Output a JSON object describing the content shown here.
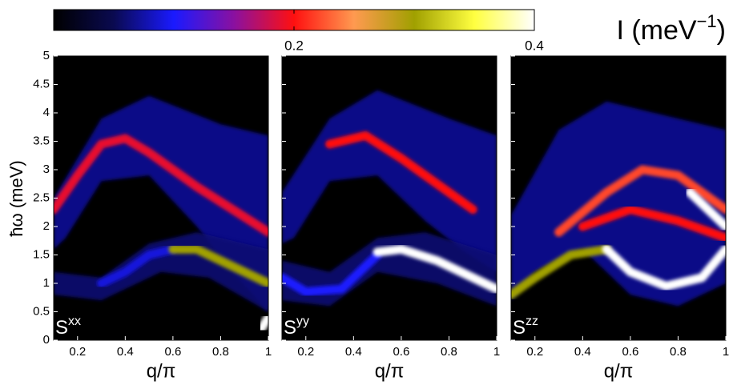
{
  "chart_data": {
    "type": "contour",
    "colorbar_label": {
      "text": "I (meV",
      "sup": "−1",
      "end": ")"
    },
    "colorbar_lim": [
      0,
      0.4
    ],
    "colorbar_ticks": [
      0.2,
      0.4
    ],
    "colormap": [
      "#000000",
      "#0a0a50",
      "#1a1aff",
      "#8a10a0",
      "#ff1010",
      "#ff9a50",
      "#a0a000",
      "#ffff40",
      "#ffffff"
    ],
    "xlabel": "q/π",
    "ylabel": "ħω (meV)",
    "xlim": [
      0.1,
      1
    ],
    "xticks": [
      0.2,
      0.4,
      0.6,
      0.8,
      1
    ],
    "ylim": [
      0,
      5
    ],
    "yticks": [
      0,
      0.5,
      1,
      1.5,
      2,
      2.5,
      3,
      3.5,
      4,
      4.5,
      5
    ],
    "panels": [
      {
        "label": {
          "base": "S",
          "sup": "xx"
        },
        "regions": [
          {
            "x": [
              0.1,
              0.3,
              0.5,
              0.8,
              1,
              1,
              0.85,
              0.7,
              0.5,
              0.3,
              0.15,
              0.1
            ],
            "y": [
              2.5,
              3.9,
              4.3,
              3.8,
              3.6,
              0.5,
              1.2,
              2.0,
              2.9,
              2.8,
              1.8,
              1.6
            ],
            "value": 0.07
          },
          {
            "x": [
              0.1,
              0.3,
              0.5,
              0.7,
              1,
              1,
              0.75,
              0.55,
              0.3,
              0.1
            ],
            "y": [
              1.2,
              1.1,
              1.7,
              1.9,
              1.6,
              0.5,
              1.1,
              1.2,
              0.7,
              0.8
            ],
            "value": 0.06
          }
        ],
        "bands": [
          {
            "x": [
              0.1,
              0.2,
              0.3,
              0.4,
              0.5,
              0.6,
              0.7,
              0.85,
              1
            ],
            "y": [
              2.3,
              2.9,
              3.45,
              3.55,
              3.3,
              3.0,
              2.7,
              2.3,
              1.9
            ],
            "value": 0.19
          },
          {
            "x": [
              0.3,
              0.4,
              0.5,
              0.6
            ],
            "y": [
              1.0,
              1.2,
              1.5,
              1.6
            ],
            "value": 0.09
          },
          {
            "x": [
              0.6,
              0.7,
              0.8,
              0.9,
              1
            ],
            "y": [
              1.6,
              1.6,
              1.4,
              1.2,
              1.0
            ],
            "value": 0.3
          },
          {
            "x": [
              0.97,
              1
            ],
            "y": [
              0.2,
              0.4
            ],
            "value": 0.4
          }
        ]
      },
      {
        "label": {
          "base": "S",
          "sup": "yy"
        },
        "regions": [
          {
            "x": [
              0.1,
              0.3,
              0.5,
              0.8,
              1,
              1,
              0.85,
              0.7,
              0.5,
              0.3,
              0.15,
              0.1
            ],
            "y": [
              2.6,
              3.9,
              4.4,
              3.9,
              3.6,
              1.2,
              1.6,
              2.1,
              2.9,
              2.8,
              1.8,
              1.7
            ],
            "value": 0.07
          },
          {
            "x": [
              0.1,
              0.3,
              0.5,
              0.7,
              1,
              1,
              0.75,
              0.5,
              0.3,
              0.1
            ],
            "y": [
              1.4,
              1.2,
              1.8,
              1.9,
              1.5,
              0.6,
              1.0,
              1.2,
              0.6,
              0.7
            ],
            "value": 0.06
          }
        ],
        "bands": [
          {
            "x": [
              0.3,
              0.4,
              0.45,
              0.6,
              0.7,
              0.8,
              0.9
            ],
            "y": [
              3.45,
              3.55,
              3.6,
              3.2,
              2.9,
              2.6,
              2.3
            ],
            "value": 0.2
          },
          {
            "x": [
              0.1,
              0.2,
              0.35,
              0.5
            ],
            "y": [
              1.1,
              0.85,
              0.9,
              1.5
            ],
            "value": 0.1
          },
          {
            "x": [
              0.5,
              0.6,
              0.75,
              0.9,
              1
            ],
            "y": [
              1.55,
              1.6,
              1.4,
              1.1,
              0.9
            ],
            "value": 0.4
          }
        ]
      },
      {
        "label": {
          "base": "S",
          "sup": "zz"
        },
        "regions": [
          {
            "x": [
              0.1,
              0.3,
              0.5,
              0.8,
              1,
              1,
              0.8,
              0.6,
              0.4,
              0.2,
              0.1
            ],
            "y": [
              2.2,
              3.7,
              4.2,
              3.9,
              3.7,
              1.0,
              0.6,
              0.8,
              1.6,
              1.2,
              0.7
            ],
            "value": 0.07
          }
        ],
        "bands": [
          {
            "x": [
              0.1,
              0.2,
              0.35,
              0.5
            ],
            "y": [
              0.8,
              1.1,
              1.5,
              1.6
            ],
            "value": 0.3
          },
          {
            "x": [
              0.5,
              0.6,
              0.75,
              0.9,
              1
            ],
            "y": [
              1.6,
              1.2,
              0.95,
              1.1,
              1.6
            ],
            "value": 0.4
          },
          {
            "x": [
              0.3,
              0.5,
              0.65,
              0.8,
              0.9,
              1
            ],
            "y": [
              1.9,
              2.6,
              3.0,
              2.9,
              2.6,
              2.3
            ],
            "value": 0.22
          },
          {
            "x": [
              0.4,
              0.6,
              0.8,
              1
            ],
            "y": [
              2.0,
              2.3,
              2.1,
              1.8
            ],
            "value": 0.2
          },
          {
            "x": [
              0.85,
              0.95,
              1
            ],
            "y": [
              2.6,
              2.2,
              2.0
            ],
            "value": 0.4
          }
        ]
      }
    ]
  }
}
